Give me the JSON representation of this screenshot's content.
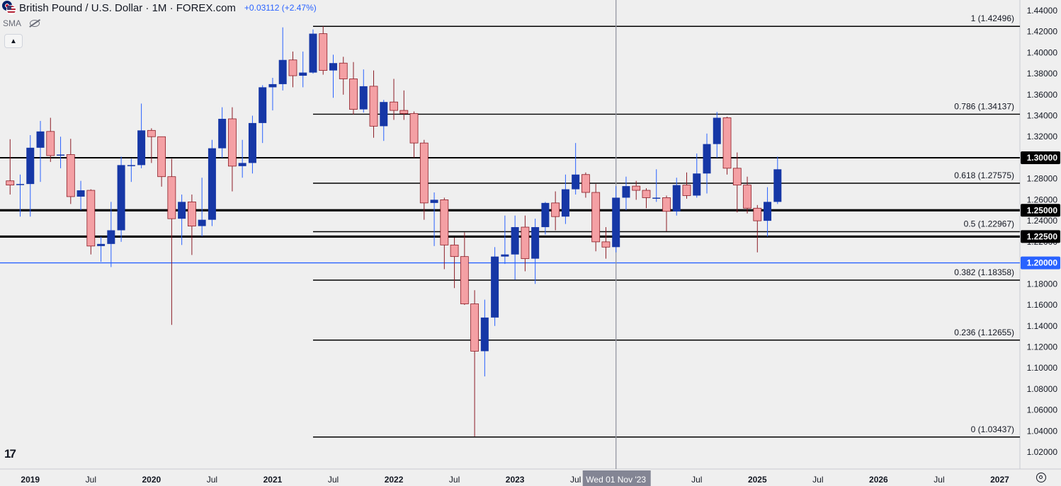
{
  "header": {
    "symbol_title": "British Pound / U.S. Dollar · 1M · FOREX.com",
    "change": "+0.03112 (+2.47%)",
    "indicator": "SMA"
  },
  "colors": {
    "up": "#1637a6",
    "down": "#f4a0a4",
    "down_outline": "#8c1c25",
    "wick_up": "#2962ff",
    "wick_down": "#8c1c25",
    "accent": "#2962ff",
    "level_line": "#000000",
    "background": "#efefef"
  },
  "icons": [
    "flag-icon",
    "eye-off-icon",
    "chevron-up-icon",
    "tradingview-logo-icon",
    "settings-icon"
  ],
  "chart_data": {
    "type": "candlestick",
    "x_range": [
      "2018-10",
      "2027-03"
    ],
    "ylim": [
      1.012,
      1.448
    ],
    "y_ticks": [
      1.02,
      1.04,
      1.06,
      1.08,
      1.1,
      1.12,
      1.14,
      1.16,
      1.18,
      1.2,
      1.22,
      1.24,
      1.26,
      1.28,
      1.3,
      1.32,
      1.34,
      1.36,
      1.38,
      1.4,
      1.42,
      1.44
    ],
    "y_tick_labels": [
      "1.02000",
      "1.04000",
      "1.06000",
      "1.08000",
      "1.10000",
      "1.12000",
      "1.14000",
      "1.16000",
      "1.18000",
      "1.20000",
      "1.22000",
      "1.24000",
      "1.26000",
      "1.28000",
      "1.30000",
      "1.32000",
      "1.34000",
      "1.36000",
      "1.38000",
      "1.40000",
      "1.42000",
      "1.44000"
    ],
    "x_ticks": [
      {
        "date": "2019-01",
        "label": "2019"
      },
      {
        "date": "2019-07",
        "label": "Jul"
      },
      {
        "date": "2020-01",
        "label": "2020"
      },
      {
        "date": "2020-07",
        "label": "Jul"
      },
      {
        "date": "2021-01",
        "label": "2021"
      },
      {
        "date": "2021-07",
        "label": "Jul"
      },
      {
        "date": "2022-01",
        "label": "2022"
      },
      {
        "date": "2022-07",
        "label": "Jul"
      },
      {
        "date": "2023-01",
        "label": "2023"
      },
      {
        "date": "2023-07",
        "label": "Jul"
      },
      {
        "date": "2024-01",
        "label": "2024"
      },
      {
        "date": "2024-07",
        "label": "Jul"
      },
      {
        "date": "2025-01",
        "label": "2025"
      },
      {
        "date": "2025-07",
        "label": "Jul"
      },
      {
        "date": "2026-01",
        "label": "2026"
      },
      {
        "date": "2026-07",
        "label": "Jul"
      },
      {
        "date": "2027-01",
        "label": "2027"
      }
    ],
    "crosshair": {
      "date": "2023-11",
      "label": "Wed 01 Nov '23"
    },
    "horizontal_levels": [
      {
        "value": 1.3,
        "label": "1.30000",
        "weight": "medium"
      },
      {
        "value": 1.25,
        "label": "1.25000",
        "weight": "bold"
      },
      {
        "value": 1.225,
        "label": "1.22500",
        "weight": "bold"
      },
      {
        "value": 1.2,
        "label": "1.20000",
        "weight": "blue"
      }
    ],
    "fibonacci": {
      "start_date": "2021-05",
      "levels": [
        {
          "ratio": "1",
          "value": 1.42496,
          "label": "1 (1.42496)"
        },
        {
          "ratio": "0.786",
          "value": 1.34137,
          "label": "0.786 (1.34137)"
        },
        {
          "ratio": "0.618",
          "value": 1.27575,
          "label": "0.618 (1.27575)"
        },
        {
          "ratio": "0.5",
          "value": 1.22967,
          "label": "0.5 (1.22967)"
        },
        {
          "ratio": "0.382",
          "value": 1.18358,
          "label": "0.382 (1.18358)"
        },
        {
          "ratio": "0.236",
          "value": 1.12655,
          "label": "0.236 (1.12655)"
        },
        {
          "ratio": "0",
          "value": 1.03437,
          "label": "0 (1.03437)"
        }
      ]
    },
    "candles": [
      {
        "d": "2018-11",
        "o": 1.278,
        "h": 1.3176,
        "l": 1.265,
        "c": 1.274
      },
      {
        "d": "2018-12",
        "o": 1.274,
        "h": 1.284,
        "l": 1.244,
        "c": 1.275
      },
      {
        "d": "2019-01",
        "o": 1.275,
        "h": 1.3215,
        "l": 1.244,
        "c": 1.3095
      },
      {
        "d": "2019-02",
        "o": 1.3095,
        "h": 1.335,
        "l": 1.277,
        "c": 1.325
      },
      {
        "d": "2019-03",
        "o": 1.325,
        "h": 1.338,
        "l": 1.296,
        "c": 1.302
      },
      {
        "d": "2019-04",
        "o": 1.302,
        "h": 1.32,
        "l": 1.29,
        "c": 1.303
      },
      {
        "d": "2019-05",
        "o": 1.303,
        "h": 1.318,
        "l": 1.256,
        "c": 1.263
      },
      {
        "d": "2019-06",
        "o": 1.263,
        "h": 1.278,
        "l": 1.25,
        "c": 1.269
      },
      {
        "d": "2019-07",
        "o": 1.269,
        "h": 1.27,
        "l": 1.208,
        "c": 1.216
      },
      {
        "d": "2019-08",
        "o": 1.216,
        "h": 1.225,
        "l": 1.201,
        "c": 1.218
      },
      {
        "d": "2019-09",
        "o": 1.218,
        "h": 1.258,
        "l": 1.196,
        "c": 1.231
      },
      {
        "d": "2019-10",
        "o": 1.231,
        "h": 1.301,
        "l": 1.22,
        "c": 1.293
      },
      {
        "d": "2019-11",
        "o": 1.293,
        "h": 1.299,
        "l": 1.277,
        "c": 1.293
      },
      {
        "d": "2019-12",
        "o": 1.293,
        "h": 1.3515,
        "l": 1.29,
        "c": 1.326
      },
      {
        "d": "2020-01",
        "o": 1.326,
        "h": 1.328,
        "l": 1.295,
        "c": 1.32
      },
      {
        "d": "2020-02",
        "o": 1.32,
        "h": 1.32,
        "l": 1.2725,
        "c": 1.282
      },
      {
        "d": "2020-03",
        "o": 1.282,
        "h": 1.299,
        "l": 1.141,
        "c": 1.242
      },
      {
        "d": "2020-04",
        "o": 1.242,
        "h": 1.265,
        "l": 1.217,
        "c": 1.258
      },
      {
        "d": "2020-05",
        "o": 1.258,
        "h": 1.265,
        "l": 1.2075,
        "c": 1.235
      },
      {
        "d": "2020-06",
        "o": 1.235,
        "h": 1.281,
        "l": 1.225,
        "c": 1.241
      },
      {
        "d": "2020-07",
        "o": 1.241,
        "h": 1.317,
        "l": 1.235,
        "c": 1.309
      },
      {
        "d": "2020-08",
        "o": 1.309,
        "h": 1.348,
        "l": 1.3,
        "c": 1.337
      },
      {
        "d": "2020-09",
        "o": 1.337,
        "h": 1.348,
        "l": 1.268,
        "c": 1.292
      },
      {
        "d": "2020-10",
        "o": 1.292,
        "h": 1.317,
        "l": 1.281,
        "c": 1.295
      },
      {
        "d": "2020-11",
        "o": 1.295,
        "h": 1.34,
        "l": 1.285,
        "c": 1.333
      },
      {
        "d": "2020-12",
        "o": 1.333,
        "h": 1.369,
        "l": 1.314,
        "c": 1.367
      },
      {
        "d": "2021-01",
        "o": 1.367,
        "h": 1.376,
        "l": 1.345,
        "c": 1.37
      },
      {
        "d": "2021-02",
        "o": 1.37,
        "h": 1.424,
        "l": 1.364,
        "c": 1.393
      },
      {
        "d": "2021-03",
        "o": 1.393,
        "h": 1.401,
        "l": 1.367,
        "c": 1.378
      },
      {
        "d": "2021-04",
        "o": 1.378,
        "h": 1.401,
        "l": 1.367,
        "c": 1.381
      },
      {
        "d": "2021-05",
        "o": 1.381,
        "h": 1.422,
        "l": 1.38,
        "c": 1.418
      },
      {
        "d": "2021-06",
        "o": 1.418,
        "h": 1.425,
        "l": 1.379,
        "c": 1.383
      },
      {
        "d": "2021-07",
        "o": 1.383,
        "h": 1.398,
        "l": 1.357,
        "c": 1.39
      },
      {
        "d": "2021-08",
        "o": 1.39,
        "h": 1.396,
        "l": 1.36,
        "c": 1.375
      },
      {
        "d": "2021-09",
        "o": 1.375,
        "h": 1.391,
        "l": 1.341,
        "c": 1.346
      },
      {
        "d": "2021-10",
        "o": 1.346,
        "h": 1.384,
        "l": 1.343,
        "c": 1.368
      },
      {
        "d": "2021-11",
        "o": 1.368,
        "h": 1.383,
        "l": 1.319,
        "c": 1.33
      },
      {
        "d": "2021-12",
        "o": 1.33,
        "h": 1.355,
        "l": 1.316,
        "c": 1.353
      },
      {
        "d": "2022-01",
        "o": 1.353,
        "h": 1.375,
        "l": 1.336,
        "c": 1.345
      },
      {
        "d": "2022-02",
        "o": 1.345,
        "h": 1.364,
        "l": 1.336,
        "c": 1.342
      },
      {
        "d": "2022-03",
        "o": 1.342,
        "h": 1.344,
        "l": 1.3,
        "c": 1.314
      },
      {
        "d": "2022-04",
        "o": 1.314,
        "h": 1.317,
        "l": 1.241,
        "c": 1.257
      },
      {
        "d": "2022-05",
        "o": 1.257,
        "h": 1.267,
        "l": 1.216,
        "c": 1.26
      },
      {
        "d": "2022-06",
        "o": 1.26,
        "h": 1.262,
        "l": 1.194,
        "c": 1.217
      },
      {
        "d": "2022-07",
        "o": 1.217,
        "h": 1.224,
        "l": 1.176,
        "c": 1.206
      },
      {
        "d": "2022-08",
        "o": 1.206,
        "h": 1.229,
        "l": 1.16,
        "c": 1.161
      },
      {
        "d": "2022-09",
        "o": 1.161,
        "h": 1.174,
        "l": 1.035,
        "c": 1.116
      },
      {
        "d": "2022-10",
        "o": 1.116,
        "h": 1.165,
        "l": 1.092,
        "c": 1.148
      },
      {
        "d": "2022-11",
        "o": 1.148,
        "h": 1.215,
        "l": 1.14,
        "c": 1.206
      },
      {
        "d": "2022-12",
        "o": 1.206,
        "h": 1.245,
        "l": 1.199,
        "c": 1.208
      },
      {
        "d": "2023-01",
        "o": 1.208,
        "h": 1.245,
        "l": 1.184,
        "c": 1.234
      },
      {
        "d": "2023-02",
        "o": 1.234,
        "h": 1.245,
        "l": 1.192,
        "c": 1.204
      },
      {
        "d": "2023-03",
        "o": 1.204,
        "h": 1.242,
        "l": 1.18,
        "c": 1.234
      },
      {
        "d": "2023-04",
        "o": 1.234,
        "h": 1.258,
        "l": 1.227,
        "c": 1.257
      },
      {
        "d": "2023-05",
        "o": 1.257,
        "h": 1.268,
        "l": 1.231,
        "c": 1.244
      },
      {
        "d": "2023-06",
        "o": 1.244,
        "h": 1.284,
        "l": 1.237,
        "c": 1.27
      },
      {
        "d": "2023-07",
        "o": 1.27,
        "h": 1.314,
        "l": 1.265,
        "c": 1.284
      },
      {
        "d": "2023-08",
        "o": 1.284,
        "h": 1.286,
        "l": 1.262,
        "c": 1.267
      },
      {
        "d": "2023-09",
        "o": 1.267,
        "h": 1.275,
        "l": 1.211,
        "c": 1.22
      },
      {
        "d": "2023-10",
        "o": 1.22,
        "h": 1.234,
        "l": 1.204,
        "c": 1.215
      },
      {
        "d": "2023-11",
        "o": 1.215,
        "h": 1.273,
        "l": 1.21,
        "c": 1.262
      },
      {
        "d": "2023-12",
        "o": 1.262,
        "h": 1.282,
        "l": 1.25,
        "c": 1.273
      },
      {
        "d": "2024-01",
        "o": 1.273,
        "h": 1.278,
        "l": 1.26,
        "c": 1.269
      },
      {
        "d": "2024-02",
        "o": 1.269,
        "h": 1.271,
        "l": 1.252,
        "c": 1.262
      },
      {
        "d": "2024-03",
        "o": 1.262,
        "h": 1.289,
        "l": 1.258,
        "c": 1.262
      },
      {
        "d": "2024-04",
        "o": 1.262,
        "h": 1.264,
        "l": 1.23,
        "c": 1.249
      },
      {
        "d": "2024-05",
        "o": 1.249,
        "h": 1.281,
        "l": 1.245,
        "c": 1.274
      },
      {
        "d": "2024-06",
        "o": 1.274,
        "h": 1.286,
        "l": 1.261,
        "c": 1.264
      },
      {
        "d": "2024-07",
        "o": 1.264,
        "h": 1.304,
        "l": 1.262,
        "c": 1.285
      },
      {
        "d": "2024-08",
        "o": 1.285,
        "h": 1.323,
        "l": 1.266,
        "c": 1.313
      },
      {
        "d": "2024-09",
        "o": 1.313,
        "h": 1.3435,
        "l": 1.3,
        "c": 1.338
      },
      {
        "d": "2024-10",
        "o": 1.338,
        "h": 1.339,
        "l": 1.284,
        "c": 1.29
      },
      {
        "d": "2024-11",
        "o": 1.29,
        "h": 1.305,
        "l": 1.248,
        "c": 1.274
      },
      {
        "d": "2024-12",
        "o": 1.274,
        "h": 1.282,
        "l": 1.247,
        "c": 1.252
      },
      {
        "d": "2025-01",
        "o": 1.252,
        "h": 1.255,
        "l": 1.21,
        "c": 1.24
      },
      {
        "d": "2025-02",
        "o": 1.24,
        "h": 1.272,
        "l": 1.225,
        "c": 1.258
      },
      {
        "d": "2025-03",
        "o": 1.258,
        "h": 1.301,
        "l": 1.256,
        "c": 1.289
      }
    ]
  }
}
